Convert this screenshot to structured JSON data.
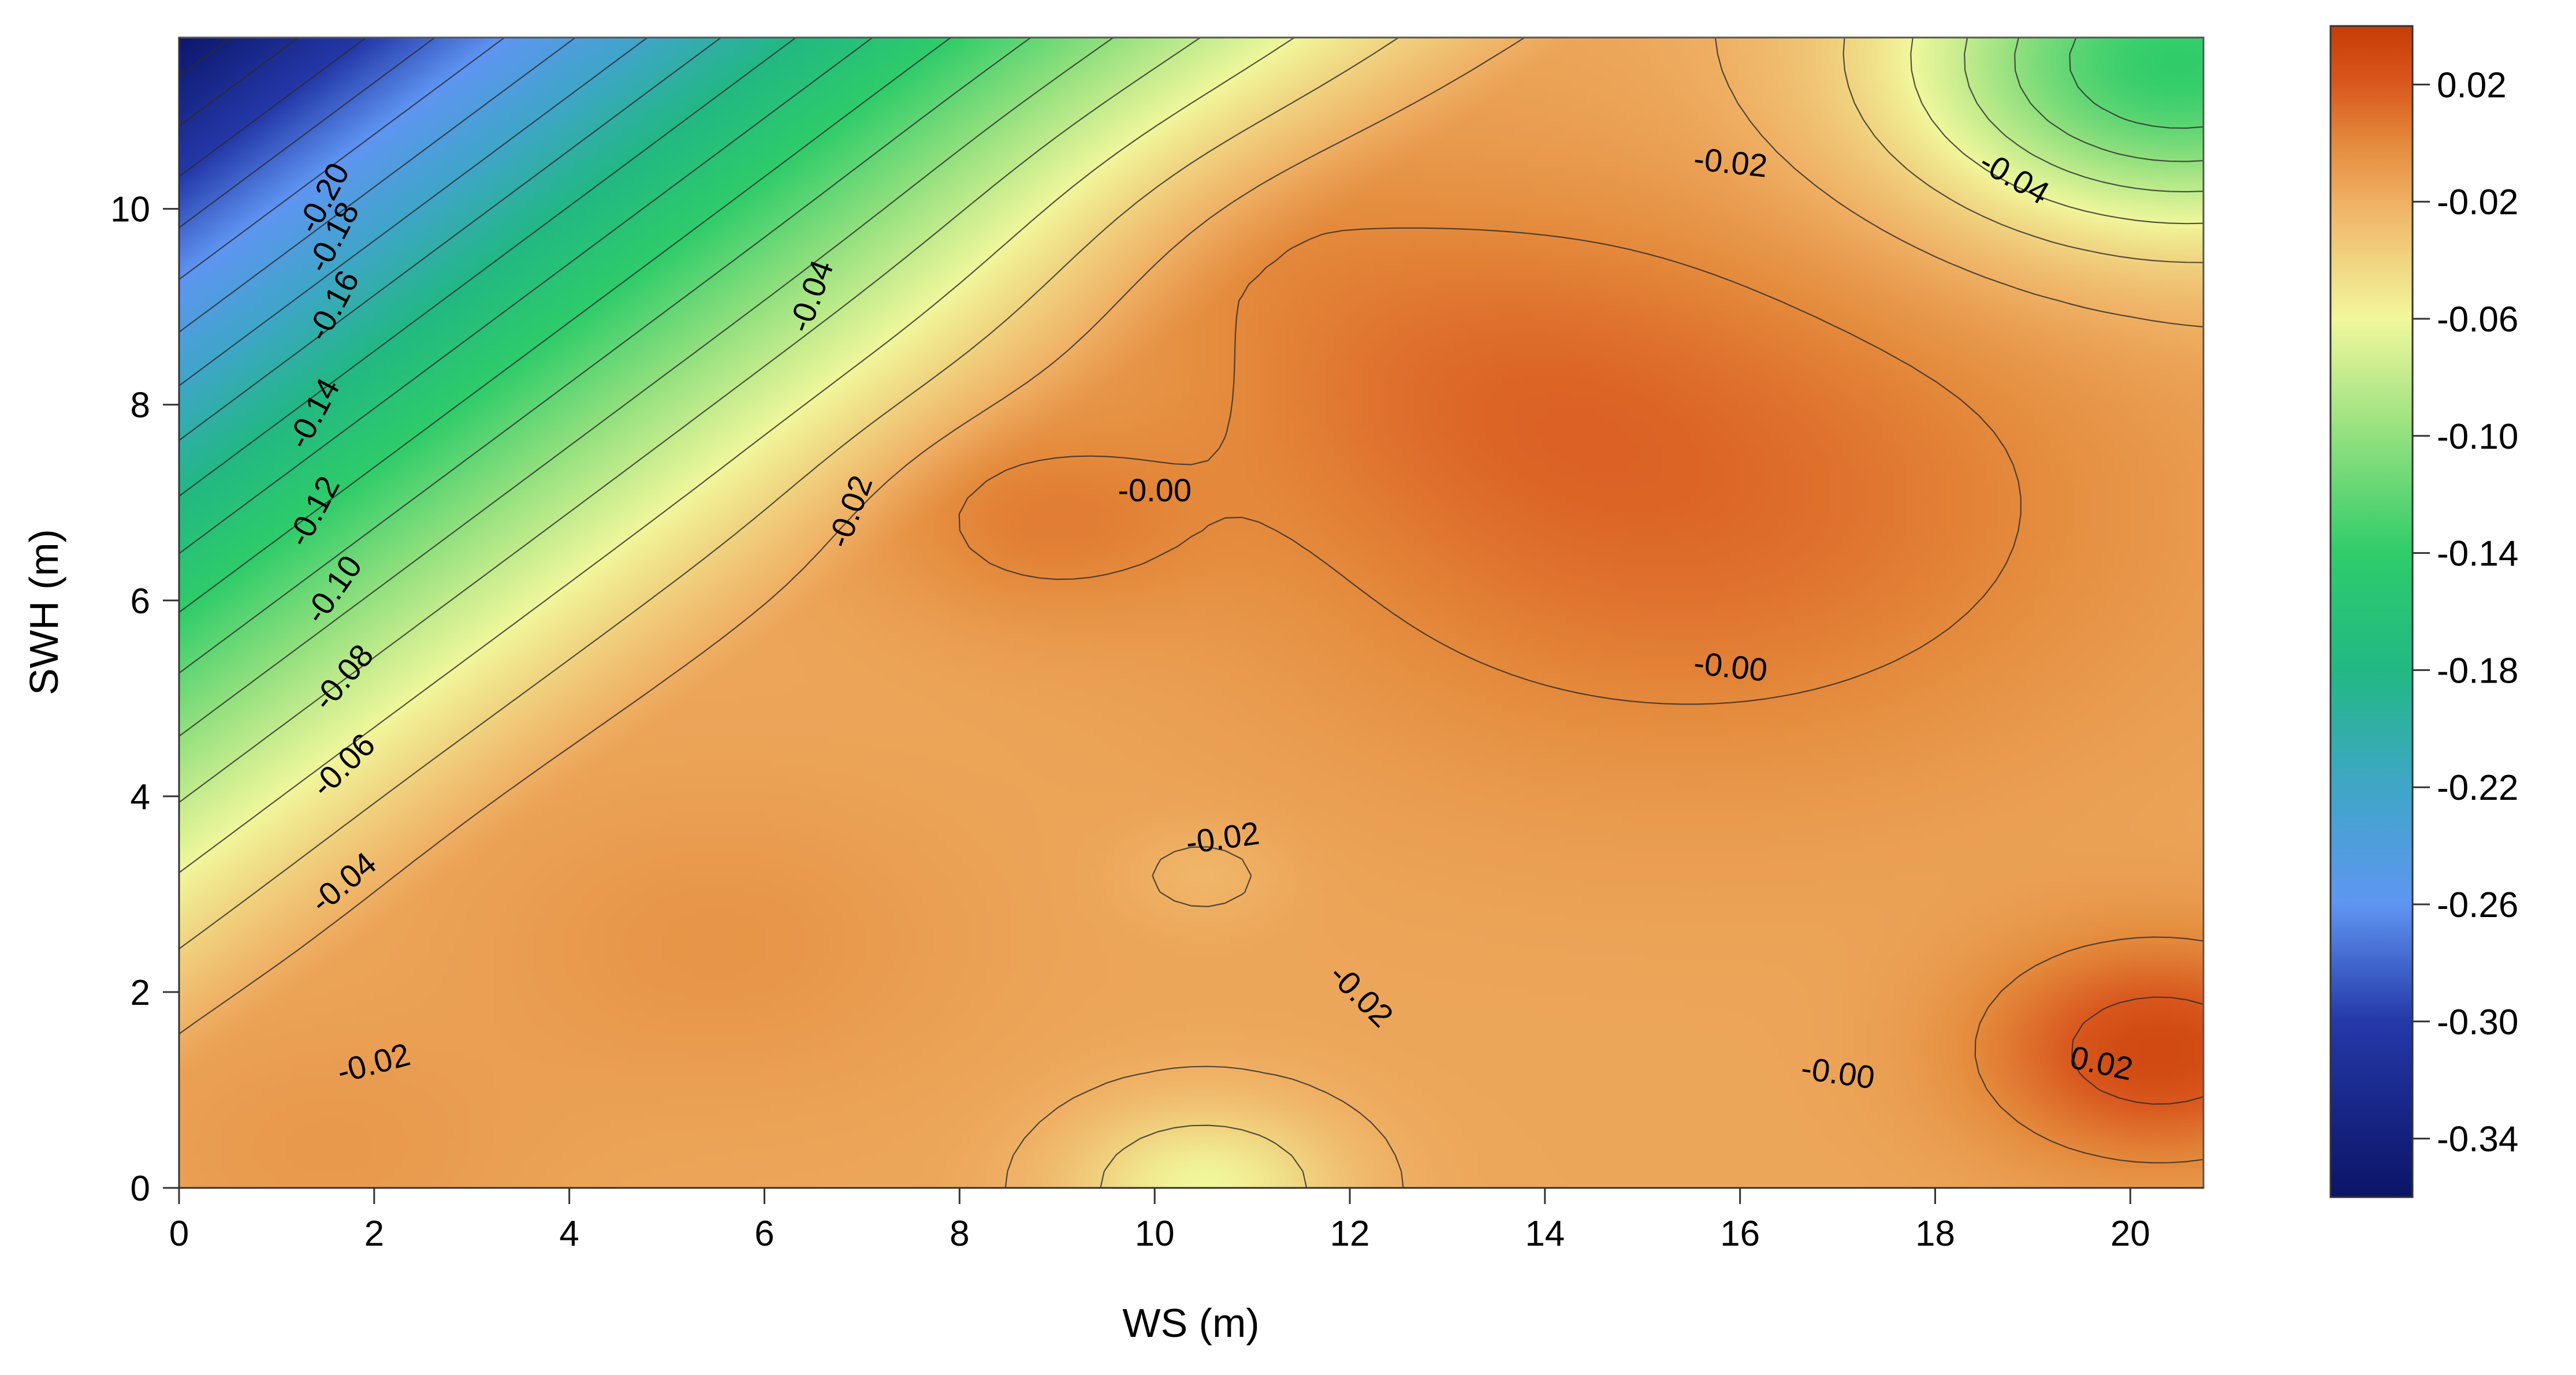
{
  "chart_data": {
    "type": "heatmap",
    "subtype": "filled-contour",
    "xlabel": "WS (m)",
    "ylabel": "SWH (m)",
    "xlim": [
      0,
      20.75
    ],
    "ylim": [
      0,
      11.75
    ],
    "x_ticks": [
      0,
      2,
      4,
      6,
      8,
      10,
      12,
      14,
      16,
      18,
      20
    ],
    "x_tick_labels": [
      "0",
      "2",
      "4",
      "6",
      "8",
      "10",
      "12",
      "14",
      "16",
      "18",
      "20"
    ],
    "y_ticks": [
      0,
      2,
      4,
      6,
      8,
      10
    ],
    "y_tick_labels": [
      "0",
      "2",
      "4",
      "6",
      "8",
      "10"
    ],
    "colorbar": {
      "range": [
        -0.36,
        0.04
      ],
      "ticks": [
        0.02,
        -0.02,
        -0.06,
        -0.1,
        -0.14,
        -0.18,
        -0.22,
        -0.26,
        -0.3,
        -0.34
      ],
      "tick_labels": [
        "0.02",
        "-0.02",
        "-0.06",
        "-0.10",
        "-0.14",
        "-0.18",
        "-0.22",
        "-0.26",
        "-0.30",
        "-0.34"
      ],
      "colormap": [
        {
          "v": -0.36,
          "color": "#0b1466"
        },
        {
          "v": -0.3,
          "color": "#2438a8"
        },
        {
          "v": -0.26,
          "color": "#5f95f2"
        },
        {
          "v": -0.22,
          "color": "#3fa6c8"
        },
        {
          "v": -0.18,
          "color": "#22b884"
        },
        {
          "v": -0.14,
          "color": "#2fcc6a"
        },
        {
          "v": -0.1,
          "color": "#92e07e"
        },
        {
          "v": -0.06,
          "color": "#f1f79c"
        },
        {
          "v": -0.02,
          "color": "#efb064"
        },
        {
          "v": 0.0,
          "color": "#e48a3c"
        },
        {
          "v": 0.02,
          "color": "#d9581e"
        },
        {
          "v": 0.04,
          "color": "#c73c06"
        }
      ]
    },
    "field_features": {
      "base": -0.015,
      "gradient_min": -0.36,
      "peaks": [
        {
          "ws": 15.5,
          "swh": 7.0,
          "value": 0.012
        },
        {
          "ws": 20.3,
          "swh": 1.4,
          "value": 0.03
        },
        {
          "ws": 13.0,
          "swh": 8.5,
          "value": -0.003
        },
        {
          "ws": 8.8,
          "swh": 6.8,
          "value": 0.002
        },
        {
          "ws": 10.5,
          "swh": 10.0,
          "value": -0.008
        },
        {
          "ws": 5.5,
          "swh": 2.5,
          "value": -0.006
        },
        {
          "ws": 1.5,
          "swh": 0.4,
          "value": -0.008
        }
      ],
      "troughs": [
        {
          "ws": 20.5,
          "swh": 11.5,
          "value": -0.14
        },
        {
          "ws": 10.5,
          "swh": 0.0,
          "value": -0.06
        },
        {
          "ws": 10.5,
          "swh": 3.2,
          "value": -0.024
        }
      ]
    },
    "contour_labels": [
      {
        "text": "-0.20",
        "x": 1.5,
        "y": 10.1,
        "angle": -62
      },
      {
        "text": "-0.18",
        "x": 1.6,
        "y": 9.7,
        "angle": -62
      },
      {
        "text": "-0.16",
        "x": 1.6,
        "y": 9.0,
        "angle": -62
      },
      {
        "text": "-0.14",
        "x": 1.4,
        "y": 7.9,
        "angle": -62
      },
      {
        "text": "-0.12",
        "x": 1.4,
        "y": 6.9,
        "angle": -62
      },
      {
        "text": "-0.10",
        "x": 1.6,
        "y": 6.1,
        "angle": -55
      },
      {
        "text": "-0.08",
        "x": 1.7,
        "y": 5.2,
        "angle": -50
      },
      {
        "text": "-0.06",
        "x": 1.7,
        "y": 4.3,
        "angle": -45
      },
      {
        "text": "-0.04",
        "x": 1.7,
        "y": 3.1,
        "angle": -40
      },
      {
        "text": "-0.02",
        "x": 2.0,
        "y": 1.25,
        "angle": -15
      },
      {
        "text": "-0.04",
        "x": 6.5,
        "y": 9.1,
        "angle": -70
      },
      {
        "text": "-0.02",
        "x": 6.9,
        "y": 6.9,
        "angle": -70
      },
      {
        "text": "-0.00",
        "x": 10.0,
        "y": 7.1,
        "angle": 0
      },
      {
        "text": "-0.02",
        "x": 15.9,
        "y": 10.45,
        "angle": 6
      },
      {
        "text": "-0.04",
        "x": 18.8,
        "y": 10.3,
        "angle": 30
      },
      {
        "text": "-0.00",
        "x": 15.9,
        "y": 5.3,
        "angle": 6
      },
      {
        "text": "-0.02",
        "x": 10.7,
        "y": 3.55,
        "angle": -8
      },
      {
        "text": "-0.02",
        "x": 12.1,
        "y": 1.95,
        "angle": 45
      },
      {
        "text": "-0.00",
        "x": 17.0,
        "y": 1.15,
        "angle": 8
      },
      {
        "text": "0.02",
        "x": 19.7,
        "y": 1.25,
        "angle": 12
      }
    ],
    "grid": false,
    "legend": "colorbar-right"
  }
}
